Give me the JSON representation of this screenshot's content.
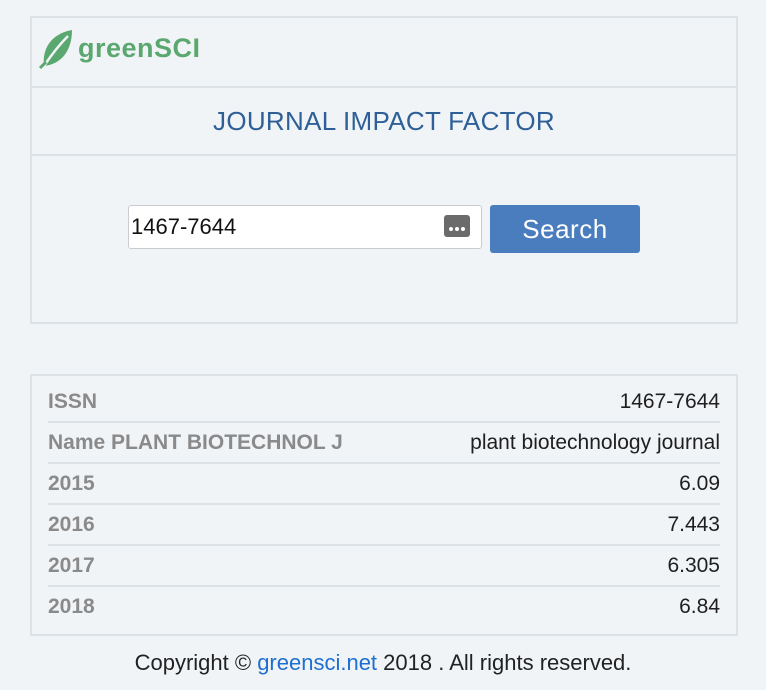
{
  "brand": {
    "name": "greenSCI",
    "leaf_color": "#5aa86f"
  },
  "header": {
    "title": "JOURNAL IMPACT FACTOR"
  },
  "search": {
    "value": "1467-7644",
    "button_label": "Search",
    "accent_color": "#4a7dbd",
    "icon": "keyboard-icon"
  },
  "results": {
    "rows": [
      {
        "label": "ISSN",
        "value": "1467-7644"
      },
      {
        "label": "Name PLANT BIOTECHNOL J",
        "value": "plant biotechnology journal"
      },
      {
        "label": "2015",
        "value": "6.09"
      },
      {
        "label": "2016",
        "value": "7.443"
      },
      {
        "label": "2017",
        "value": "6.305"
      },
      {
        "label": "2018",
        "value": "6.84"
      }
    ]
  },
  "footer": {
    "prefix": "Copyright ©",
    "link_text": "greensci.net",
    "suffix": " 2018 . All rights reserved."
  }
}
